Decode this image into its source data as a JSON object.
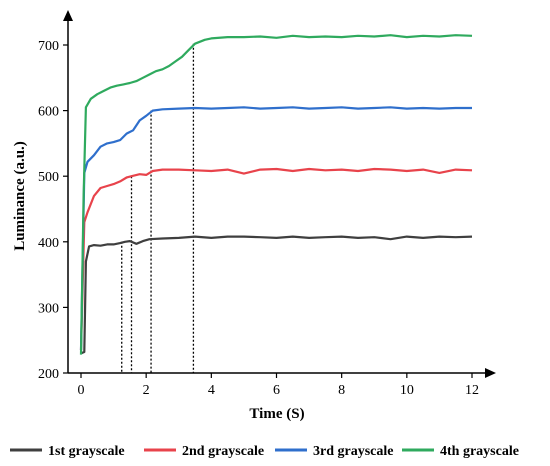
{
  "chart_data": {
    "type": "line",
    "xlabel": "Time (S)",
    "ylabel": "Luminance (a.u.)",
    "xlim": [
      0,
      12
    ],
    "ylim": [
      200,
      700
    ],
    "xticks": [
      "0",
      "2",
      "4",
      "6",
      "8",
      "10",
      "12"
    ],
    "yticks": [
      "200",
      "300",
      "400",
      "500",
      "600",
      "700"
    ],
    "xtick_values": [
      0,
      2,
      4,
      6,
      8,
      10,
      12
    ],
    "ytick_values": [
      200,
      300,
      400,
      500,
      600,
      700
    ],
    "grid": false,
    "legend_position": "bottom",
    "series": [
      {
        "name": "1st grayscale",
        "color": "#3f3f3f",
        "x": [
          0.0,
          0.1,
          0.15,
          0.25,
          0.4,
          0.6,
          0.8,
          1.0,
          1.2,
          1.35,
          1.5,
          1.7,
          1.9,
          2.1,
          2.5,
          3.0,
          3.5,
          4.0,
          4.5,
          5.0,
          5.5,
          6.0,
          6.5,
          7.0,
          7.5,
          8.0,
          8.5,
          9.0,
          9.5,
          10.0,
          10.5,
          11.0,
          11.5,
          12.0
        ],
        "values": [
          230,
          232,
          370,
          393,
          395,
          394,
          396,
          396,
          398,
          400,
          401,
          397,
          401,
          404,
          405,
          406,
          408,
          406,
          408,
          408,
          407,
          406,
          408,
          406,
          407,
          408,
          406,
          407,
          404,
          408,
          406,
          408,
          407,
          408
        ]
      },
      {
        "name": "2nd grayscale",
        "color": "#e8434b",
        "x": [
          0.0,
          0.1,
          0.2,
          0.4,
          0.6,
          0.8,
          1.0,
          1.2,
          1.4,
          1.55,
          1.8,
          2.0,
          2.2,
          2.5,
          3.0,
          3.5,
          4.0,
          4.5,
          5.0,
          5.5,
          6.0,
          6.5,
          7.0,
          7.5,
          8.0,
          8.5,
          9.0,
          9.5,
          10.0,
          10.5,
          11.0,
          11.5,
          12.0
        ],
        "values": [
          235,
          430,
          445,
          470,
          482,
          485,
          488,
          492,
          498,
          500,
          503,
          502,
          508,
          510,
          510,
          509,
          508,
          510,
          504,
          510,
          511,
          508,
          511,
          509,
          510,
          508,
          511,
          510,
          508,
          510,
          505,
          510,
          509
        ]
      },
      {
        "name": "3rd grayscale",
        "color": "#2f6fcc",
        "x": [
          0.0,
          0.1,
          0.2,
          0.4,
          0.6,
          0.8,
          1.0,
          1.2,
          1.4,
          1.6,
          1.8,
          2.0,
          2.2,
          2.5,
          3.0,
          3.5,
          4.0,
          4.5,
          5.0,
          5.5,
          6.0,
          6.5,
          7.0,
          7.5,
          8.0,
          8.5,
          9.0,
          9.5,
          10.0,
          10.5,
          11.0,
          11.5,
          12.0
        ],
        "values": [
          235,
          505,
          522,
          532,
          545,
          550,
          552,
          555,
          565,
          570,
          585,
          592,
          600,
          602,
          603,
          604,
          603,
          604,
          605,
          603,
          604,
          605,
          603,
          604,
          605,
          603,
          604,
          605,
          603,
          604,
          603,
          604,
          604
        ]
      },
      {
        "name": "4th grayscale",
        "color": "#2faa5e",
        "x": [
          0.0,
          0.08,
          0.15,
          0.3,
          0.5,
          0.7,
          0.9,
          1.1,
          1.3,
          1.5,
          1.7,
          1.9,
          2.1,
          2.3,
          2.5,
          2.7,
          2.9,
          3.1,
          3.3,
          3.5,
          3.8,
          4.0,
          4.5,
          5.0,
          5.5,
          6.0,
          6.5,
          7.0,
          7.5,
          8.0,
          8.5,
          9.0,
          9.5,
          10.0,
          10.5,
          11.0,
          11.5,
          12.0
        ],
        "values": [
          228,
          470,
          605,
          618,
          625,
          630,
          635,
          638,
          640,
          642,
          645,
          650,
          655,
          660,
          663,
          668,
          675,
          682,
          692,
          702,
          708,
          710,
          712,
          712,
          713,
          711,
          714,
          712,
          713,
          712,
          714,
          713,
          715,
          712,
          714,
          713,
          715,
          714
        ]
      }
    ],
    "annotations": [
      {
        "type": "vline",
        "x": 1.25,
        "y_top": 400
      },
      {
        "type": "vline",
        "x": 1.55,
        "y_top": 500
      },
      {
        "type": "vline",
        "x": 2.15,
        "y_top": 600
      },
      {
        "type": "vline",
        "x": 3.45,
        "y_top": 702
      }
    ]
  }
}
